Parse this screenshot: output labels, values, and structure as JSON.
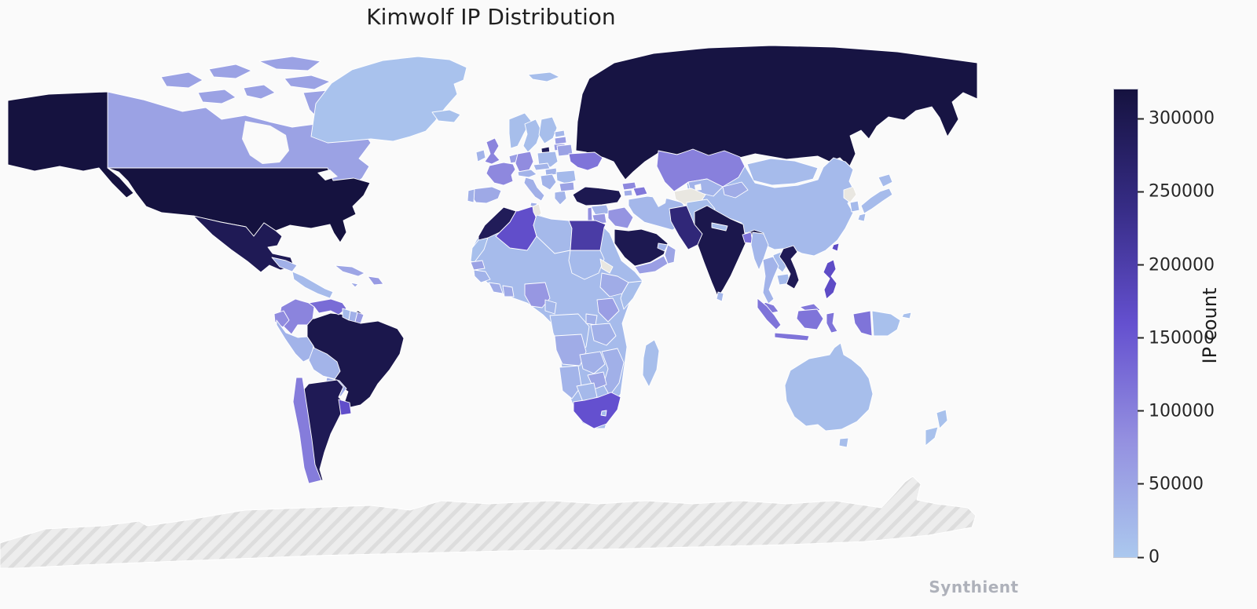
{
  "title": "Kimwolf IP Distribution",
  "watermark": "Synthient",
  "chart_data": {
    "type": "heatmap",
    "subtype": "world_choropleth_map",
    "title": "Kimwolf IP Distribution",
    "colorbar": {
      "label": "IP count",
      "ticks": [
        0,
        50000,
        100000,
        150000,
        200000,
        250000,
        300000
      ],
      "vmin": 0,
      "vmax": 320000,
      "gradient_stops": [
        {
          "t": 0.0,
          "color": "#abc8ee"
        },
        {
          "t": 0.25,
          "color": "#9490e0"
        },
        {
          "t": 0.5,
          "color": "#6450cf"
        },
        {
          "t": 0.75,
          "color": "#362c85"
        },
        {
          "t": 1.0,
          "color": "#15123f"
        }
      ],
      "no_data_color": "#e9e7e1"
    },
    "regions": {
      "united_states": {
        "name": "United States",
        "value": 320000
      },
      "canada": {
        "name": "Canada",
        "value": 55000
      },
      "mexico": {
        "name": "Mexico",
        "value": 295000
      },
      "greenland": {
        "name": "Greenland",
        "value": 8000
      },
      "iceland": {
        "name": "Iceland",
        "value": 10000
      },
      "cuba": {
        "name": "Cuba",
        "value": 50000
      },
      "hispaniola": {
        "name": "Dominican Republic / Haiti",
        "value": 65000
      },
      "jamaica": {
        "name": "Jamaica",
        "value": 45000
      },
      "guatemala_honduras": {
        "name": "Guatemala / Honduras",
        "value": 35000
      },
      "central_america_south": {
        "name": "Nicaragua / Costa Rica / Panama",
        "value": 18000
      },
      "colombia": {
        "name": "Colombia",
        "value": 95000
      },
      "venezuela": {
        "name": "Venezuela",
        "value": 125000
      },
      "guyana": {
        "name": "Guyana",
        "value": 18000
      },
      "suriname": {
        "name": "Suriname",
        "value": 35000
      },
      "french_guiana": {
        "name": "French Guiana",
        "value": 65000
      },
      "brazil": {
        "name": "Brazil",
        "value": 305000
      },
      "ecuador": {
        "name": "Ecuador",
        "value": 85000
      },
      "peru": {
        "name": "Peru",
        "value": 30000
      },
      "bolivia": {
        "name": "Bolivia",
        "value": 28000
      },
      "paraguay": {
        "name": "Paraguay",
        "value": 38000
      },
      "chile": {
        "name": "Chile",
        "value": 105000
      },
      "argentina": {
        "name": "Argentina",
        "value": 295000
      },
      "uruguay": {
        "name": "Uruguay",
        "value": 165000
      },
      "norway": {
        "name": "Norway",
        "value": 15000
      },
      "sweden": {
        "name": "Sweden",
        "value": 15000
      },
      "finland": {
        "name": "Finland",
        "value": 15000
      },
      "denmark": {
        "name": "Denmark",
        "value": 290000
      },
      "estonia": {
        "name": "Estonia",
        "value": 25000
      },
      "latvia": {
        "name": "Latvia",
        "value": 60000
      },
      "lithuania": {
        "name": "Lithuania",
        "value": 65000
      },
      "united_kingdom": {
        "name": "United Kingdom",
        "value": 95000
      },
      "ireland": {
        "name": "Ireland",
        "value": 30000
      },
      "netherlands_belgium": {
        "name": "Netherlands / Belgium",
        "value": 60000
      },
      "germany": {
        "name": "Germany",
        "value": 85000
      },
      "poland": {
        "name": "Poland",
        "value": 22000
      },
      "france": {
        "name": "France",
        "value": 90000
      },
      "spain": {
        "name": "Spain",
        "value": 45000
      },
      "portugal": {
        "name": "Portugal",
        "value": 35000
      },
      "italy": {
        "name": "Italy",
        "value": 35000
      },
      "switzerland_austria": {
        "name": "Switzerland / Austria",
        "value": 30000
      },
      "czech_slovakia": {
        "name": "Czechia / Slovakia",
        "value": 28000
      },
      "hungary": {
        "name": "Hungary",
        "value": 30000
      },
      "balkans": {
        "name": "Western Balkans",
        "value": 30000
      },
      "greece": {
        "name": "Greece",
        "value": 28000
      },
      "romania": {
        "name": "Romania",
        "value": 20000
      },
      "bulgaria": {
        "name": "Bulgaria",
        "value": 55000
      },
      "belarus": {
        "name": "Belarus",
        "value": 55000
      },
      "ukraine": {
        "name": "Ukraine",
        "value": 115000
      },
      "russia": {
        "name": "Russia",
        "value": 315000
      },
      "turkey": {
        "name": "Turkey",
        "value": 300000
      },
      "georgia_country": {
        "name": "Georgia",
        "value": 90000
      },
      "armenia": {
        "name": "Armenia",
        "value": 40000
      },
      "azerbaijan": {
        "name": "Azerbaijan",
        "value": 110000
      },
      "syria": {
        "name": "Syria",
        "value": 28000
      },
      "israel_lebanon": {
        "name": "Israel / Lebanon",
        "value": 80000
      },
      "jordan": {
        "name": "Jordan",
        "value": 70000
      },
      "iraq": {
        "name": "Iraq",
        "value": 75000
      },
      "saudi_arabia": {
        "name": "Saudi Arabia",
        "value": 300000
      },
      "yemen": {
        "name": "Yemen",
        "value": 60000
      },
      "oman": {
        "name": "Oman",
        "value": 50000
      },
      "uae_qatar": {
        "name": "UAE / Qatar",
        "value": 30000
      },
      "iran": {
        "name": "Iran",
        "value": 25000
      },
      "afghanistan": {
        "name": "Afghanistan",
        "value": 15000
      },
      "turkmenistan": {
        "name": "Turkmenistan",
        "value": null
      },
      "uzbekistan": {
        "name": "Uzbekistan",
        "value": 30000
      },
      "kazakhstan": {
        "name": "Kazakhstan",
        "value": 100000
      },
      "kyrgyzstan_tajikistan": {
        "name": "Kyrgyzstan / Tajikistan",
        "value": 40000
      },
      "pakistan": {
        "name": "Pakistan",
        "value": 255000
      },
      "india": {
        "name": "India",
        "value": 305000
      },
      "nepal": {
        "name": "Nepal",
        "value": 15000
      },
      "bangladesh": {
        "name": "Bangladesh",
        "value": 120000
      },
      "sri_lanka": {
        "name": "Sri Lanka",
        "value": 25000
      },
      "myanmar": {
        "name": "Myanmar",
        "value": 25000
      },
      "thailand": {
        "name": "Thailand",
        "value": 30000
      },
      "laos": {
        "name": "Laos",
        "value": 18000
      },
      "cambodia": {
        "name": "Cambodia",
        "value": 20000
      },
      "vietnam": {
        "name": "Vietnam",
        "value": 295000
      },
      "malaysia": {
        "name": "Malaysia",
        "value": 110000
      },
      "indonesia": {
        "name": "Indonesia",
        "value": 115000
      },
      "philippines": {
        "name": "Philippines",
        "value": 170000
      },
      "taiwan": {
        "name": "Taiwan",
        "value": 170000
      },
      "china": {
        "name": "China",
        "value": 20000
      },
      "mongolia": {
        "name": "Mongolia",
        "value": 18000
      },
      "north_korea": {
        "name": "North Korea",
        "value": null
      },
      "south_korea": {
        "name": "South Korea",
        "value": 20000
      },
      "japan": {
        "name": "Japan",
        "value": 18000
      },
      "other_africa": {
        "name": "Other Africa",
        "value": 18000
      },
      "morocco": {
        "name": "Morocco",
        "value": 290000
      },
      "western_sahara": {
        "name": "Western Sahara",
        "value": 12000
      },
      "algeria": {
        "name": "Algeria",
        "value": 165000
      },
      "tunisia": {
        "name": "Tunisia",
        "value": null
      },
      "libya": {
        "name": "Libya",
        "value": 22000
      },
      "egypt": {
        "name": "Egypt",
        "value": 205000
      },
      "sudan": {
        "name": "Sudan",
        "value": 20000
      },
      "eritrea": {
        "name": "Eritrea",
        "value": null
      },
      "ethiopia": {
        "name": "Ethiopia",
        "value": 40000
      },
      "somalia": {
        "name": "Somalia",
        "value": 15000
      },
      "senegal": {
        "name": "Senegal",
        "value": 55000
      },
      "guinea": {
        "name": "Guinea",
        "value": 30000
      },
      "ivory_coast": {
        "name": "Ivory Coast",
        "value": 40000
      },
      "ghana": {
        "name": "Ghana",
        "value": 45000
      },
      "nigeria": {
        "name": "Nigeria",
        "value": 70000
      },
      "cameroon": {
        "name": "Cameroon",
        "value": 25000
      },
      "dr_congo": {
        "name": "DR Congo",
        "value": 18000
      },
      "uganda": {
        "name": "Uganda",
        "value": 35000
      },
      "kenya": {
        "name": "Kenya",
        "value": 60000
      },
      "tanzania": {
        "name": "Tanzania",
        "value": 35000
      },
      "angola": {
        "name": "Angola",
        "value": 40000
      },
      "zambia": {
        "name": "Zambia",
        "value": 35000
      },
      "mozambique": {
        "name": "Mozambique",
        "value": 35000
      },
      "zimbabwe": {
        "name": "Zimbabwe",
        "value": 50000
      },
      "namibia": {
        "name": "Namibia",
        "value": 28000
      },
      "botswana": {
        "name": "Botswana",
        "value": 22000
      },
      "south_africa": {
        "name": "South Africa",
        "value": 160000
      },
      "lesotho": {
        "name": "Lesotho",
        "value": 20000
      },
      "madagascar": {
        "name": "Madagascar",
        "value": 15000
      },
      "australia": {
        "name": "Australia",
        "value": 15000
      },
      "papua_new_guinea": {
        "name": "Papua New Guinea",
        "value": 12000
      },
      "new_zealand": {
        "name": "New Zealand",
        "value": 10000
      },
      "antarctica": {
        "name": "Antarctica",
        "value": null,
        "hatched": true
      }
    }
  }
}
